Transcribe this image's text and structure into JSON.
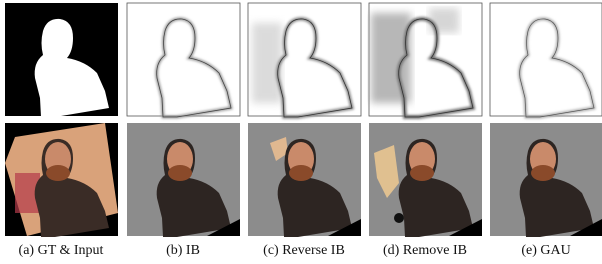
{
  "figure": {
    "captions": [
      "(a) GT & Input",
      "(b) IB",
      "(c) Reverse IB",
      "(d) Remove IB",
      "(e) GAU"
    ]
  }
}
